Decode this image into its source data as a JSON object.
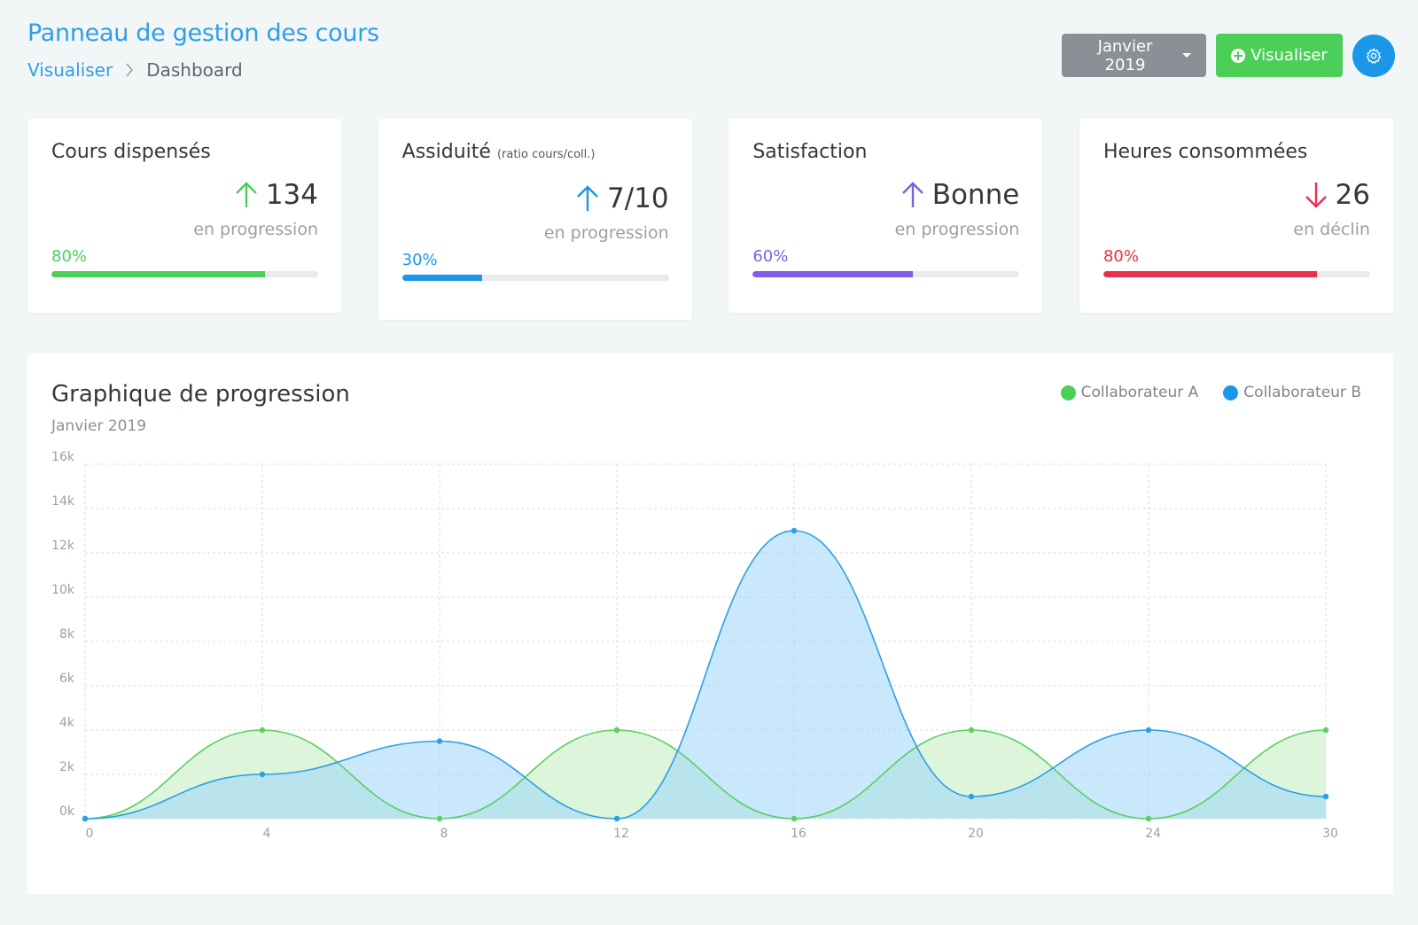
{
  "header": {
    "title": "Panneau de gestion des cours",
    "breadcrumb": {
      "link": "Visualiser",
      "current": "Dashboard"
    }
  },
  "toolbar": {
    "month_label": "Janvier 2019",
    "visualiser_label": "Visualiser",
    "icons": [
      "caret-down-icon",
      "plus-circle-icon",
      "gear-icon"
    ]
  },
  "cards": [
    {
      "title": "Cours dispensés",
      "title_note": "",
      "value": "134",
      "trend": "up",
      "trend_color": "#4ccf58",
      "sub": "en progression",
      "percent_label": "80%",
      "percent": 0.8,
      "color": "#4ccf58"
    },
    {
      "title": "Assiduité",
      "title_note": "(ratio cours/coll.)",
      "value": "7/10",
      "trend": "up",
      "trend_color": "#1a97ea",
      "sub": "en progression",
      "percent_label": "30%",
      "percent": 0.3,
      "color": "#1a97ea"
    },
    {
      "title": "Satisfaction",
      "title_note": "",
      "value": "Bonne",
      "trend": "up",
      "trend_color": "#7f5ee8",
      "sub": "en progression",
      "percent_label": "60%",
      "percent": 0.6,
      "color": "#7f5ee8"
    },
    {
      "title": "Heures consommées",
      "title_note": "",
      "value": "26",
      "trend": "down",
      "trend_color": "#e8304a",
      "sub": "en déclin",
      "percent_label": "80%",
      "percent": 0.8,
      "color": "#e8304a"
    }
  ],
  "chart": {
    "title": "Graphique de progression",
    "subtitle": "Janvier 2019"
  },
  "chart_data": {
    "type": "area",
    "title": "Graphique de progression",
    "subtitle": "Janvier 2019",
    "x": [
      0,
      4,
      8,
      12,
      16,
      20,
      24,
      30
    ],
    "x_tick_labels": [
      "0",
      "4",
      "8",
      "12",
      "16",
      "20",
      "24",
      "30"
    ],
    "y_tick_labels": [
      "0k",
      "2k",
      "4k",
      "6k",
      "8k",
      "10k",
      "12k",
      "14k",
      "16k"
    ],
    "ylim": [
      0,
      16000
    ],
    "grid": true,
    "legend_position": "top-right",
    "series": [
      {
        "name": "Collaborateur A",
        "color": "#5ccf63",
        "fill": "#d6f3d5",
        "values": [
          0,
          4000,
          0,
          4000,
          0,
          4000,
          0,
          4000
        ]
      },
      {
        "name": "Collaborateur B",
        "color": "#2c9fe6",
        "fill": "#9fd5f8",
        "values": [
          0,
          2000,
          3500,
          0,
          13000,
          1000,
          4000,
          1000
        ]
      }
    ]
  }
}
